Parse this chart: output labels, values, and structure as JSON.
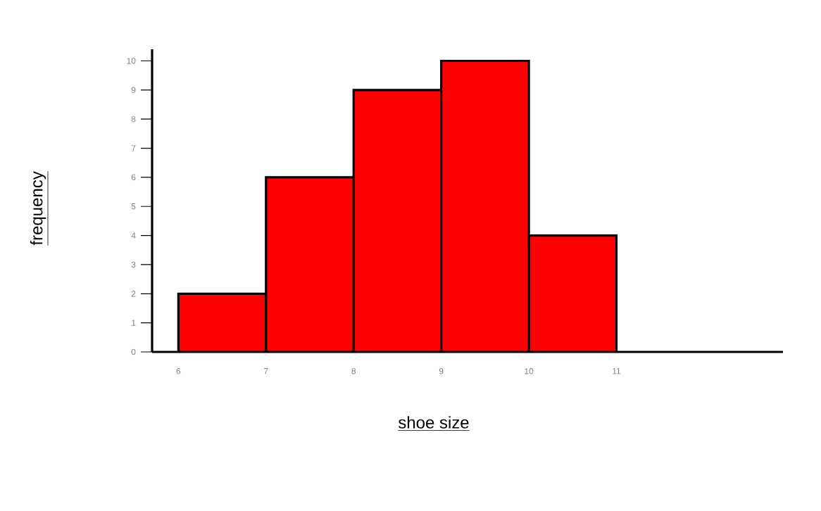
{
  "chart_data": {
    "type": "histogram",
    "xlabel": "shoe size",
    "ylabel": "frequency",
    "bins": [
      6,
      7,
      8,
      9,
      10,
      11
    ],
    "values": [
      2,
      6,
      9,
      10,
      4
    ],
    "color": "#ff0000",
    "xlim": [
      5.7,
      12.9
    ],
    "ylim": [
      0,
      10.4
    ],
    "xticks": [
      6,
      7,
      8,
      9,
      10,
      11
    ],
    "yticks": [
      0,
      1,
      2,
      3,
      4,
      5,
      6,
      7,
      8,
      9,
      10
    ]
  }
}
